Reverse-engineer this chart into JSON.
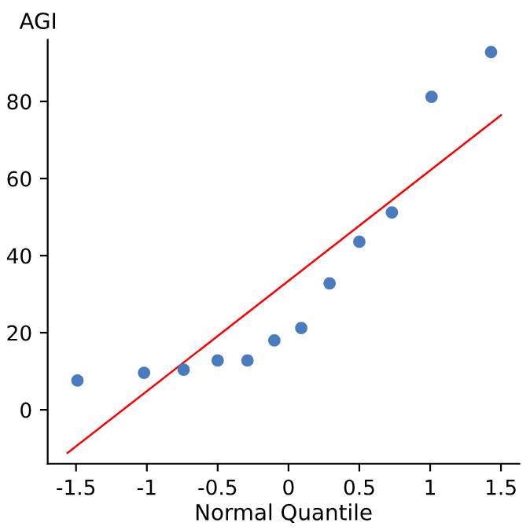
{
  "chart_data": {
    "type": "scatter",
    "xlabel": "Normal Quantile",
    "ylabel": "AGI",
    "series": [
      {
        "color": "#4a7bbf",
        "marker": "circle",
        "x": [
          -1.49,
          -1.02,
          -0.74,
          -0.5,
          -0.29,
          -0.1,
          0.09,
          0.29,
          0.5,
          0.73,
          1.01,
          1.43
        ],
        "values": [
          7.6,
          9.6,
          10.4,
          12.8,
          12.8,
          18,
          21.2,
          32.8,
          43.6,
          51.2,
          81.2,
          92.8
        ]
      },
      {
        "type": "line",
        "marker": "none",
        "color": "#ff0000",
        "x": [
          -1.56,
          1.5
        ],
        "values": [
          -11.2,
          76.4
        ]
      }
    ],
    "xlim": [
      -1.7,
      1.63
    ],
    "ylim": [
      -14,
      96
    ],
    "xticks": [
      {
        "value": -1.5,
        "label": "-1.5"
      },
      {
        "value": -1,
        "label": "-1"
      },
      {
        "value": -0.5,
        "label": "-0.5"
      },
      0,
      0.5,
      1,
      1.5
    ],
    "yticks": [
      0,
      20,
      40,
      60,
      80
    ],
    "grid": false
  }
}
